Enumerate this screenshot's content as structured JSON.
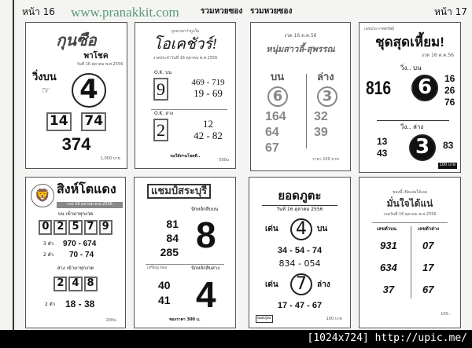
{
  "header": {
    "page_left": "หน้า 16",
    "website": "www.pranakkit.com",
    "section_left": "รวมหวยซอง",
    "section_right": "รวมหวยซอง",
    "page_right": "หน้า 17"
  },
  "cards": [
    {
      "title": "กุนซือ",
      "subtitle": "พาโชค",
      "date": "วันที่ 16 ตุลาคม พ.ศ.2556",
      "label": "วิ่งบน",
      "main": "4",
      "pair": [
        "14",
        "74"
      ],
      "three": "374",
      "price": "1,000 บาท"
    },
    {
      "intro": "ถูกมากกว่าถูกใจ",
      "title": "โอเคชัวร์!",
      "date": "งวดประจำวันที่ 16 ตุลาคม พ.ศ.2556",
      "top_label": "O.K. บน",
      "top_main": "9",
      "top_nums": [
        "469 - 719",
        "19 - 69"
      ],
      "bottom_label": "O.K. ล่าง",
      "bottom_main": "2",
      "bottom_nums": [
        "12",
        "42 - 82"
      ],
      "slogan": "ขอให้ท่านโชคดี..",
      "price": "500บ"
    },
    {
      "date": "งวด 16 ต.ค.56",
      "title": "หนุ่มสาวลี้-สุพรรณ",
      "top_label": "บน",
      "bottom_label": "ล่าง",
      "top_main": "6",
      "bottom_main": "3",
      "top_nums": [
        "164",
        "64",
        "67"
      ],
      "bottom_nums": [
        "32",
        "39"
      ],
      "price": "ราคา 100 บาท"
    },
    {
      "intro": "เลขประกาศทรัพย์",
      "title": "ชุดสุดเหี้ยม!",
      "date": "งวด 16 ต.ค.56",
      "top_label": "วิ่ง.. บน",
      "three": "816",
      "top_main": "6",
      "top_nums": [
        "16",
        "26",
        "76"
      ],
      "bottom_label": "วิ่ง.. ล่าง",
      "bottom_main": "3",
      "left_nums": [
        "13",
        "43"
      ],
      "right_num": "83",
      "price": "100 บาท"
    },
    {
      "title": "สิงห์โตแดง",
      "date": "งวด 16 ตุลาคม พ.ศ.2556",
      "top_label": "บน เข้ามาทุกงวด",
      "top_digits": [
        "0",
        "2",
        "5",
        "7",
        "9"
      ],
      "row3_label": "3 ตัว",
      "row3": "970 - 674",
      "row2_label": "2 ตัว",
      "row2": "70 - 74",
      "bottom_label": "ล่าง เข้ามาทุกงวด",
      "bottom_digits": [
        "2",
        "4",
        "8"
      ],
      "bottom2_label": "2 ตัว",
      "bottom2": "18 - 38",
      "price": "200บ."
    },
    {
      "title": "แชมป์สระบุรี",
      "top_label": "ปักหลักสิบบน",
      "top_nums": [
        "81",
        "84",
        "285"
      ],
      "top_main": "8",
      "mid_label": "เหรียญ ทอง",
      "bottom_label": "ปักหลักสิบล่าง",
      "bottom_nums": [
        "40",
        "41"
      ],
      "bottom_main": "4",
      "price": "ซองราคา 300 บ."
    },
    {
      "title": "ยอดภูตะ",
      "date": "วันที่ 16 ตุลาคม 2556",
      "top_pre": "เด่น",
      "top_main": "4",
      "top_post": "บน",
      "nums1": "34 - 54 - 74",
      "nums2": "834 - 054",
      "bot_pre": "เด่น",
      "bot_main": "7",
      "bot_post": "ล่าง",
      "nums3": "17 - 47 - 67",
      "logo": "ยอดภูตะ",
      "price": "100 บาท"
    },
    {
      "intro": "ซองนี้ เปิดเล่นได้เลย",
      "title": "มั่นใจได้แน่",
      "date": "งวดวันที่ 16 ตุลาคม พ.ศ.2556",
      "left_label": "เลขตัวบน",
      "right_label": "เลขตัวล่าง",
      "left_nums": [
        "931",
        "634",
        "37"
      ],
      "right_nums": [
        "07",
        "17",
        "67"
      ],
      "price": "100.-"
    }
  ],
  "footer": {
    "text": "[1024x724] http://upic.me/"
  }
}
